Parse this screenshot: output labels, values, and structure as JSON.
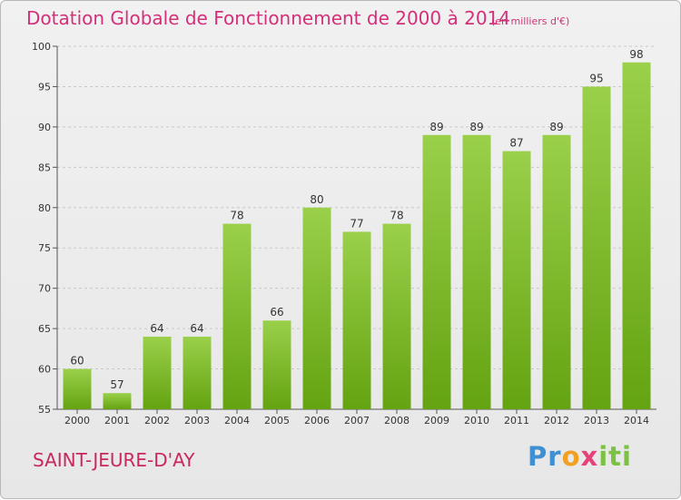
{
  "header": {
    "title": "Dotation Globale de Fonctionnement de 2000 à 2014",
    "unit": "(en milliers d'€)"
  },
  "footer": {
    "commune": "SAINT-JEURE-D'AY",
    "logo": [
      "Pr",
      "o",
      "x",
      "iti"
    ]
  },
  "colors": {
    "bar_light": "#9ad04a",
    "bar_dark": "#64a311",
    "title": "#d4307a",
    "commune": "#c8285f"
  },
  "chart_data": {
    "type": "bar",
    "title": "Dotation Globale de Fonctionnement de 2000 à 2014",
    "subtitle": "(en milliers d'€)",
    "xlabel": "",
    "ylabel": "",
    "categories": [
      "2000",
      "2001",
      "2002",
      "2003",
      "2004",
      "2005",
      "2006",
      "2007",
      "2008",
      "2009",
      "2010",
      "2011",
      "2012",
      "2013",
      "2014"
    ],
    "values": [
      60,
      57,
      64,
      64,
      78,
      66,
      80,
      77,
      78,
      89,
      89,
      87,
      89,
      95,
      98
    ],
    "ylim": [
      55,
      100
    ],
    "yticks": [
      55,
      60,
      65,
      70,
      75,
      80,
      85,
      90,
      95,
      100
    ],
    "grid": true
  }
}
